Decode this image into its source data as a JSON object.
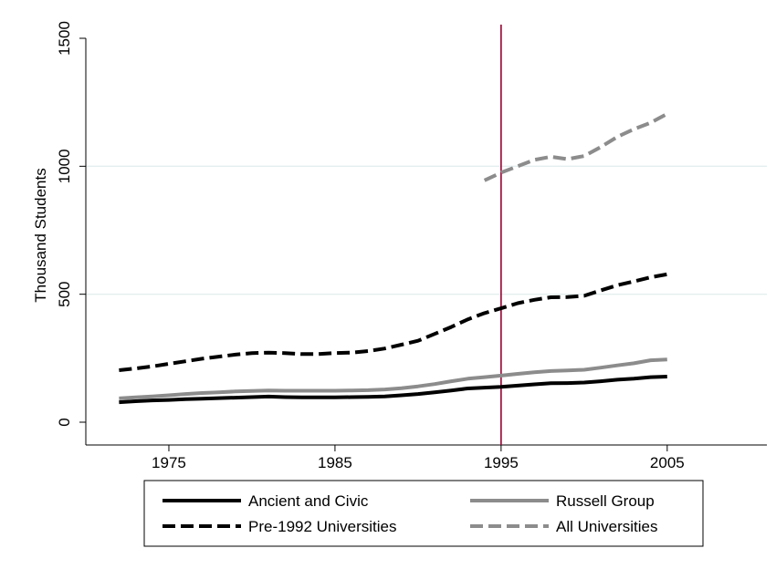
{
  "chart_data": {
    "type": "line",
    "ylabel": "Thousand Students",
    "xlim": [
      1970,
      2011
    ],
    "ylim": [
      0,
      1500
    ],
    "x_ticks": [
      1975,
      1985,
      1995,
      2005
    ],
    "y_ticks": [
      0,
      500,
      1000,
      1500
    ],
    "grid": true,
    "reference_line": {
      "x": 1995,
      "color": "#990033"
    },
    "legend": {
      "placement": "bottom",
      "columns": 2
    },
    "series": [
      {
        "name": "Ancient and Civic",
        "color": "#000000",
        "dash": "solid",
        "x": [
          1972,
          1973,
          1974,
          1975,
          1976,
          1977,
          1978,
          1979,
          1980,
          1981,
          1982,
          1983,
          1984,
          1985,
          1986,
          1987,
          1988,
          1989,
          1990,
          1991,
          1992,
          1993,
          1994,
          1995,
          1996,
          1997,
          1998,
          1999,
          2000,
          2001,
          2002,
          2003,
          2004,
          2005
        ],
        "values": [
          78,
          82,
          85,
          87,
          90,
          92,
          94,
          96,
          98,
          100,
          98,
          97,
          97,
          97,
          98,
          99,
          101,
          105,
          110,
          117,
          124,
          132,
          135,
          138,
          143,
          148,
          152,
          153,
          155,
          160,
          166,
          170,
          176,
          178
        ]
      },
      {
        "name": "Russell Group",
        "color": "#8c8c8c",
        "dash": "solid",
        "x": [
          1972,
          1973,
          1974,
          1975,
          1976,
          1977,
          1978,
          1979,
          1980,
          1981,
          1982,
          1983,
          1984,
          1985,
          1986,
          1987,
          1988,
          1989,
          1990,
          1991,
          1992,
          1993,
          1994,
          1995,
          1996,
          1997,
          1998,
          1999,
          2000,
          2001,
          2002,
          2003,
          2004,
          2005
        ],
        "values": [
          93,
          97,
          101,
          105,
          110,
          114,
          117,
          120,
          122,
          124,
          123,
          123,
          123,
          123,
          124,
          125,
          128,
          133,
          140,
          149,
          160,
          170,
          176,
          182,
          189,
          195,
          200,
          202,
          205,
          213,
          222,
          230,
          242,
          245
        ]
      },
      {
        "name": "Pre-1992 Universities",
        "color": "#000000",
        "dash": "dashed",
        "x": [
          1972,
          1973,
          1974,
          1975,
          1976,
          1977,
          1978,
          1979,
          1980,
          1981,
          1982,
          1983,
          1984,
          1985,
          1986,
          1987,
          1988,
          1989,
          1990,
          1991,
          1992,
          1993,
          1994,
          1995,
          1996,
          1997,
          1998,
          1999,
          2000,
          2001,
          2002,
          2003,
          2004,
          2005
        ],
        "values": [
          203,
          210,
          218,
          228,
          238,
          248,
          256,
          264,
          270,
          272,
          270,
          266,
          266,
          270,
          272,
          278,
          288,
          303,
          318,
          345,
          372,
          402,
          426,
          445,
          465,
          478,
          488,
          489,
          494,
          515,
          535,
          550,
          566,
          578
        ]
      },
      {
        "name": "All Universities",
        "color": "#8c8c8c",
        "dash": "dashed",
        "x": [
          1994,
          1995,
          1996,
          1997,
          1998,
          1999,
          2000,
          2001,
          2002,
          2003,
          2004,
          2005
        ],
        "values": [
          945,
          975,
          1000,
          1025,
          1037,
          1028,
          1040,
          1075,
          1115,
          1145,
          1170,
          1205
        ]
      }
    ]
  }
}
